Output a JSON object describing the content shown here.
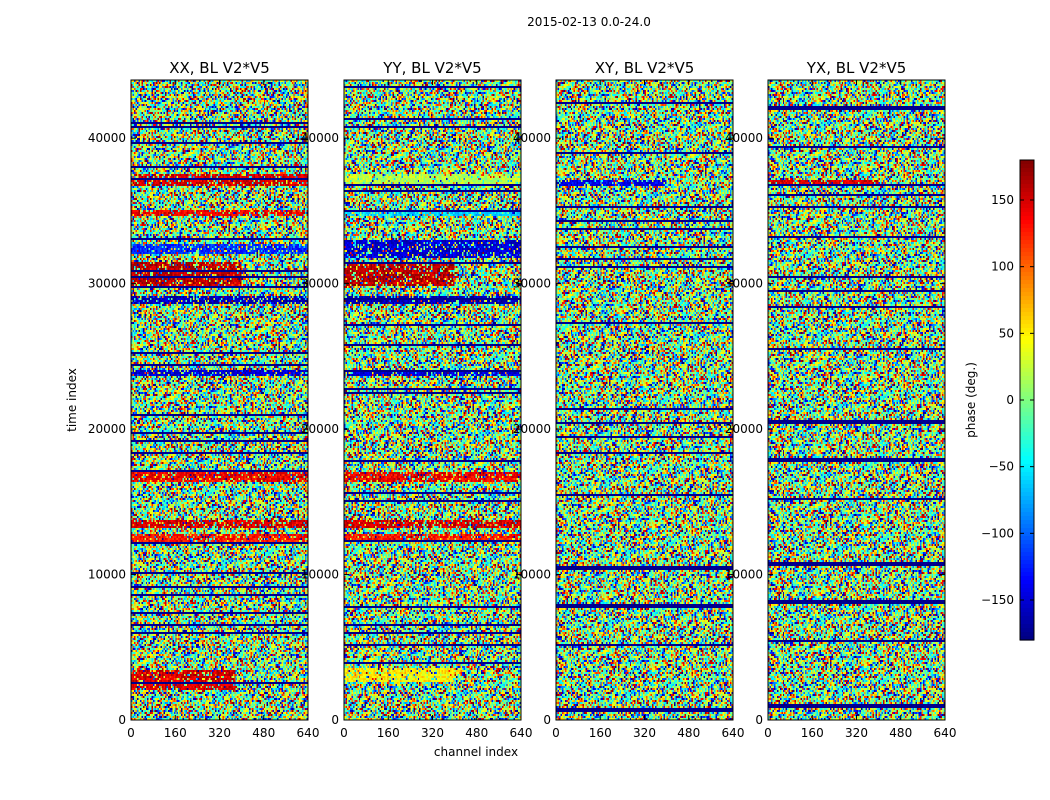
{
  "suptitle": "2015-02-13 0.0-24.0",
  "chart_data": [
    {
      "type": "heatmap",
      "title": "XX, BL V2*V5",
      "xlabel": "channel index",
      "ylabel": "time index",
      "xlim": [
        0,
        640
      ],
      "ylim": [
        0,
        44000
      ],
      "xticks": [
        0,
        160,
        320,
        480,
        640
      ],
      "yticks": [
        0,
        10000,
        20000,
        30000,
        40000
      ],
      "value_range": [
        -180,
        180
      ],
      "coherent_bands": [
        {
          "y": [
            2000,
            3500
          ],
          "x": [
            0,
            380
          ],
          "phase": 150
        },
        {
          "y": [
            12200,
            12800
          ],
          "x": [
            0,
            640
          ],
          "phase": 130
        },
        {
          "y": [
            13200,
            13700
          ],
          "x": [
            0,
            640
          ],
          "phase": 150
        },
        {
          "y": [
            16400,
            17000
          ],
          "x": [
            0,
            640
          ],
          "phase": 140
        },
        {
          "y": [
            23600,
            24100
          ],
          "x": [
            0,
            640
          ],
          "phase": -150
        },
        {
          "y": [
            28600,
            29200
          ],
          "x": [
            0,
            640
          ],
          "phase": -160
        },
        {
          "y": [
            29800,
            31500
          ],
          "x": [
            0,
            400
          ],
          "phase": 160
        },
        {
          "y": [
            32000,
            32700
          ],
          "x": [
            0,
            640
          ],
          "phase": -120
        },
        {
          "y": [
            34600,
            35100
          ],
          "x": [
            0,
            640
          ],
          "phase": 140
        },
        {
          "y": [
            36700,
            37600
          ],
          "x": [
            0,
            640
          ],
          "phase": 150
        }
      ]
    },
    {
      "type": "heatmap",
      "title": "YY, BL V2*V5",
      "xlabel": "",
      "ylabel": "",
      "xlim": [
        0,
        640
      ],
      "ylim": [
        0,
        44000
      ],
      "xticks": [
        0,
        160,
        320,
        480,
        640
      ],
      "yticks": [
        0,
        10000,
        20000,
        30000,
        40000
      ],
      "value_range": [
        -180,
        180
      ],
      "coherent_bands": [
        {
          "y": [
            2600,
            3600
          ],
          "x": [
            0,
            400
          ],
          "phase": 50
        },
        {
          "y": [
            12200,
            12800
          ],
          "x": [
            0,
            640
          ],
          "phase": 130
        },
        {
          "y": [
            13200,
            13700
          ],
          "x": [
            0,
            640
          ],
          "phase": 150
        },
        {
          "y": [
            16400,
            17000
          ],
          "x": [
            0,
            640
          ],
          "phase": 140
        },
        {
          "y": [
            23600,
            24100
          ],
          "x": [
            0,
            640
          ],
          "phase": -150
        },
        {
          "y": [
            28600,
            29200
          ],
          "x": [
            0,
            640
          ],
          "phase": -160
        },
        {
          "y": [
            29800,
            31500
          ],
          "x": [
            0,
            400
          ],
          "phase": 160
        },
        {
          "y": [
            31800,
            33000
          ],
          "x": [
            0,
            640
          ],
          "phase": -150
        },
        {
          "y": [
            34600,
            35100
          ],
          "x": [
            0,
            640
          ],
          "phase": -60
        },
        {
          "y": [
            36700,
            37600
          ],
          "x": [
            0,
            640
          ],
          "phase": 20
        }
      ]
    },
    {
      "type": "heatmap",
      "title": "XY, BL V2*V5",
      "xlabel": "",
      "ylabel": "",
      "xlim": [
        0,
        640
      ],
      "ylim": [
        0,
        44000
      ],
      "xticks": [
        0,
        160,
        320,
        480,
        640
      ],
      "yticks": [
        0,
        10000,
        20000,
        30000,
        40000
      ],
      "value_range": [
        -180,
        180
      ],
      "coherent_bands": [
        {
          "y": [
            36700,
            37100
          ],
          "x": [
            0,
            400
          ],
          "phase": -140
        }
      ]
    },
    {
      "type": "heatmap",
      "title": "YX, BL V2*V5",
      "xlabel": "",
      "ylabel": "",
      "xlim": [
        0,
        640
      ],
      "ylim": [
        0,
        44000
      ],
      "xticks": [
        0,
        160,
        320,
        480,
        640
      ],
      "yticks": [
        0,
        10000,
        20000,
        30000,
        40000
      ],
      "value_range": [
        -180,
        180
      ],
      "coherent_bands": [
        {
          "y": [
            36700,
            37100
          ],
          "x": [
            0,
            400
          ],
          "phase": 150
        }
      ]
    }
  ],
  "colorbar": {
    "label": "phase (deg.)",
    "range": [
      -180,
      180
    ],
    "ticks": [
      -150,
      -100,
      -50,
      0,
      50,
      100,
      150
    ],
    "tick_labels": [
      "−150",
      "−100",
      "−50",
      "0",
      "50",
      "100",
      "150"
    ],
    "colormap": "jet"
  }
}
